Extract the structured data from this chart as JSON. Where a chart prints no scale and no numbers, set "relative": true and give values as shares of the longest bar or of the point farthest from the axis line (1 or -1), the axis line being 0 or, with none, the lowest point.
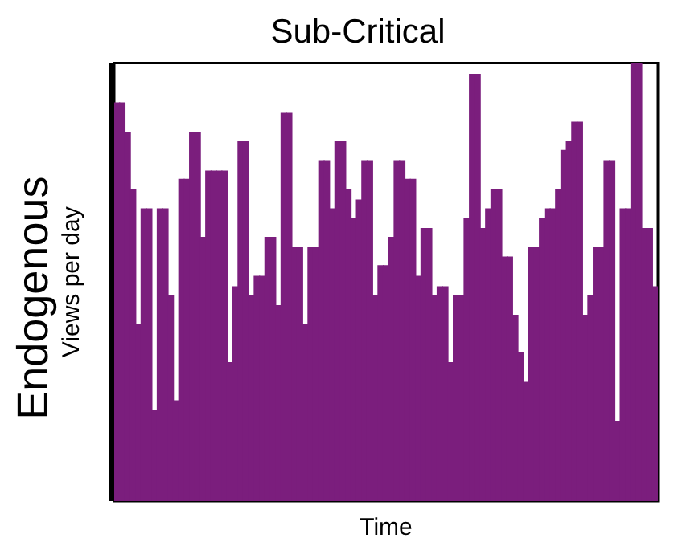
{
  "chart_data": {
    "type": "bar",
    "title": "Sub-Critical",
    "xlabel": "Time",
    "ylabel": "Views per day",
    "relative": true,
    "color": "#7b1e7d",
    "annotations": [
      "Endogenous"
    ],
    "categories": [
      null,
      null,
      null,
      null,
      null,
      null,
      null,
      null,
      null,
      null,
      null,
      null,
      null,
      null,
      null,
      null,
      null,
      null,
      null,
      null,
      null,
      null,
      null,
      null,
      null,
      null,
      null,
      null,
      null,
      null,
      null,
      null,
      null,
      null,
      null,
      null,
      null,
      null,
      null,
      null,
      null,
      null,
      null,
      null,
      null,
      null,
      null,
      null,
      null,
      null,
      null,
      null,
      null,
      null,
      null,
      null,
      null,
      null,
      null,
      null,
      null,
      null,
      null,
      null,
      null,
      null,
      null,
      null,
      null,
      null,
      null,
      null,
      null,
      null,
      null,
      null,
      null,
      null,
      null,
      null,
      null,
      null,
      null,
      null,
      null,
      null,
      null,
      null,
      null,
      null,
      null,
      null,
      null,
      null,
      null,
      null,
      null,
      null,
      null,
      null,
      null
    ],
    "values": [
      0.909,
      0.909,
      0.841,
      0.71,
      0.404,
      0.667,
      0.667,
      0.206,
      0.667,
      0.667,
      0.469,
      0.229,
      0.734,
      0.734,
      0.841,
      0.841,
      0.602,
      0.753,
      0.753,
      0.753,
      0.753,
      0.316,
      0.489,
      0.82,
      0.82,
      0.469,
      0.513,
      0.513,
      0.602,
      0.602,
      0.446,
      0.885,
      0.885,
      0.578,
      0.578,
      0.404,
      0.578,
      0.578,
      0.777,
      0.777,
      0.667,
      0.82,
      0.82,
      0.71,
      0.645,
      0.687,
      0.777,
      0.777,
      0.469,
      0.537,
      0.537,
      0.602,
      0.777,
      0.777,
      0.734,
      0.734,
      0.513,
      0.622,
      0.622,
      0.469,
      0.489,
      0.489,
      0.316,
      0.469,
      0.469,
      0.645,
      0.974,
      0.974,
      0.622,
      0.667,
      0.71,
      0.71,
      0.557,
      0.557,
      0.424,
      0.338,
      0.271,
      0.578,
      0.578,
      0.645,
      0.667,
      0.667,
      0.71,
      0.8,
      0.82,
      0.865,
      0.865,
      0.424,
      0.469,
      0.578,
      0.578,
      0.777,
      0.777,
      0.182,
      0.667,
      0.667,
      1,
      1,
      0.622,
      0.622,
      0.489
    ]
  }
}
